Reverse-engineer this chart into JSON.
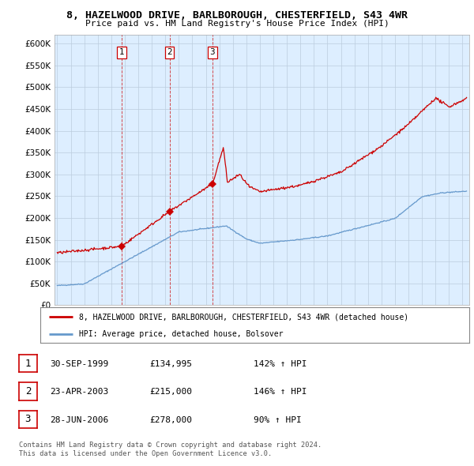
{
  "title": "8, HAZELWOOD DRIVE, BARLBOROUGH, CHESTERFIELD, S43 4WR",
  "subtitle": "Price paid vs. HM Land Registry's House Price Index (HPI)",
  "ylabel_ticks": [
    0,
    50000,
    100000,
    150000,
    200000,
    250000,
    300000,
    350000,
    400000,
    450000,
    500000,
    550000,
    600000
  ],
  "ylim": [
    0,
    620000
  ],
  "xlim_start": 1994.8,
  "xlim_end": 2025.5,
  "sale_dates": [
    1999.75,
    2003.31,
    2006.49
  ],
  "sale_prices": [
    134995,
    215000,
    278000
  ],
  "sale_labels": [
    "1",
    "2",
    "3"
  ],
  "sale_label_dates": [
    "30-SEP-1999",
    "23-APR-2003",
    "28-JUN-2006"
  ],
  "sale_label_prices": [
    "£134,995",
    "£215,000",
    "£278,000"
  ],
  "sale_label_hpi": [
    "142% ↑ HPI",
    "146% ↑ HPI",
    "90% ↑ HPI"
  ],
  "legend_red_label": "8, HAZELWOOD DRIVE, BARLBOROUGH, CHESTERFIELD, S43 4WR (detached house)",
  "legend_blue_label": "HPI: Average price, detached house, Bolsover",
  "footer_line1": "Contains HM Land Registry data © Crown copyright and database right 2024.",
  "footer_line2": "This data is licensed under the Open Government Licence v3.0.",
  "red_color": "#cc0000",
  "blue_color": "#6699cc",
  "chart_bg": "#ddeeff",
  "background_color": "#ffffff",
  "grid_color": "#bbccdd"
}
